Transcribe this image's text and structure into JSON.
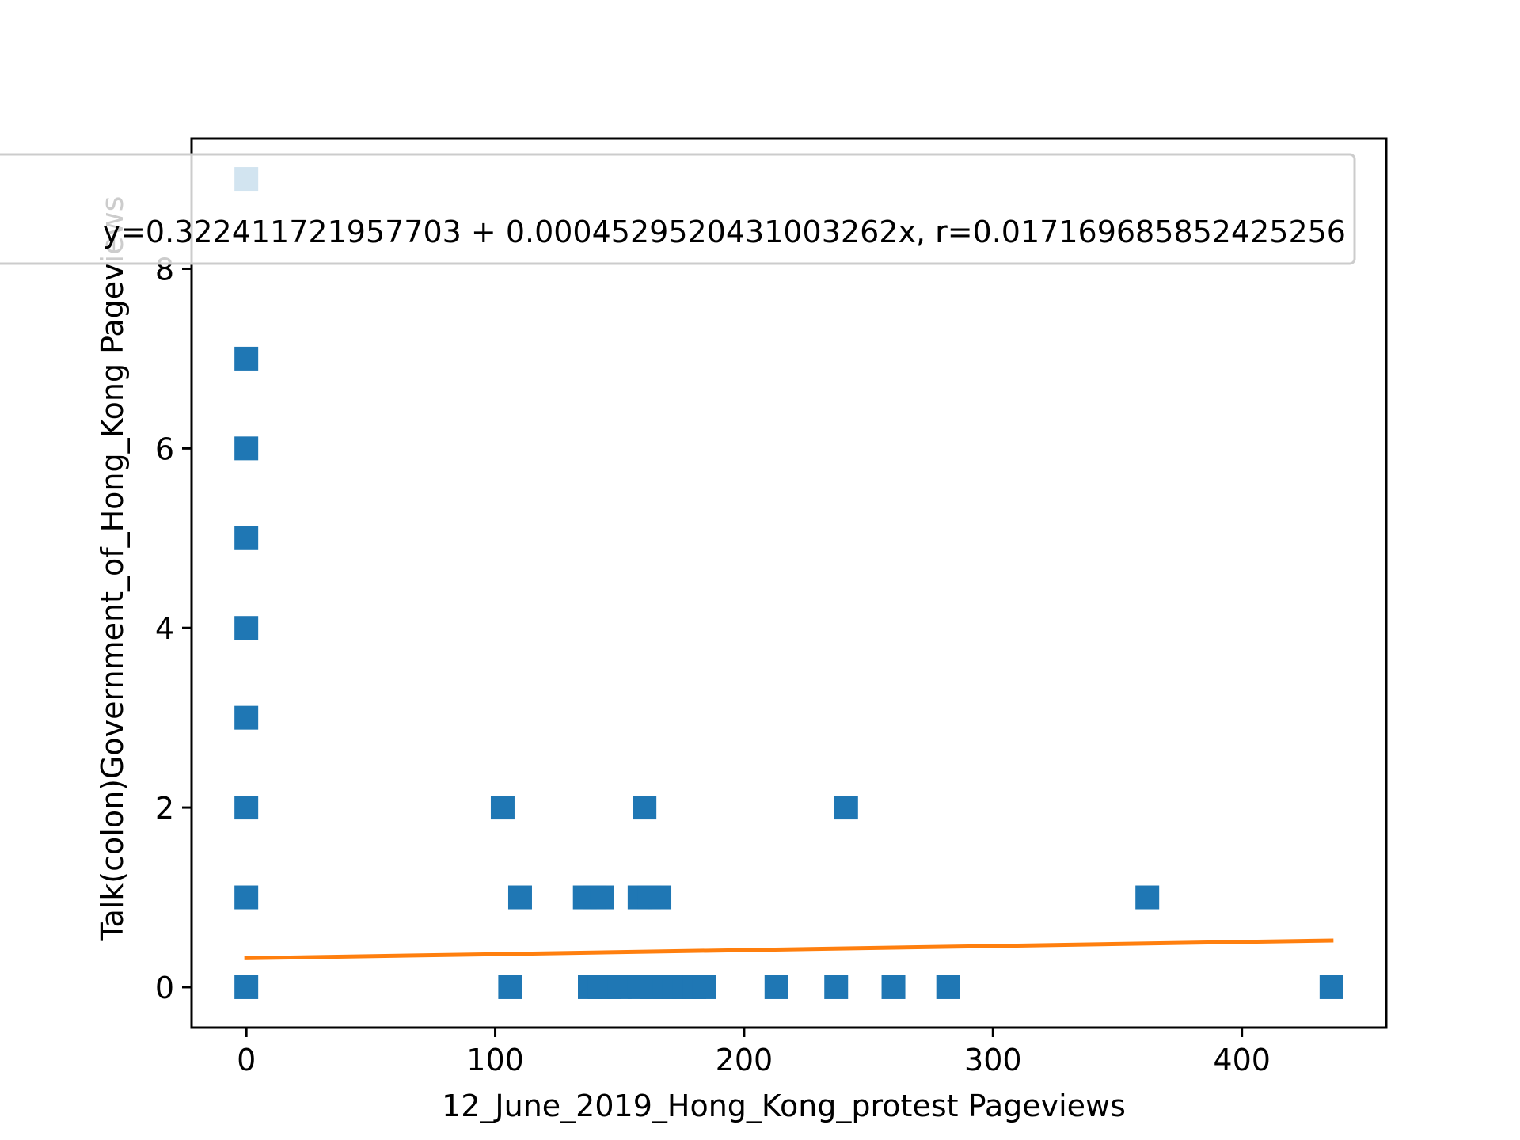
{
  "chart_data": {
    "type": "scatter",
    "title": "",
    "xlabel": "12_June_2019_Hong_Kong_protest Pageviews",
    "ylabel": "Talk(colon)Government_of_Hong_Kong Pageviews",
    "xlim": [
      -22,
      458
    ],
    "ylim": [
      -0.45,
      9.45
    ],
    "xticks": [
      0,
      100,
      200,
      300,
      400
    ],
    "yticks": [
      0,
      2,
      4,
      6,
      8
    ],
    "grid": false,
    "legend": {
      "placement": "upper center",
      "text": "y=0.322411721957703 + 0.000452952043100326​2x, r=0.017169685852425256"
    },
    "series": [
      {
        "kind": "scatter",
        "marker": "square",
        "color": "#1f77b4",
        "points": [
          [
            0,
            9
          ],
          [
            0,
            7
          ],
          [
            0,
            6
          ],
          [
            0,
            5
          ],
          [
            0,
            4
          ],
          [
            0,
            3
          ],
          [
            0,
            2
          ],
          [
            0,
            1
          ],
          [
            0,
            0
          ],
          [
            103,
            2
          ],
          [
            106,
            0
          ],
          [
            110,
            1
          ],
          [
            136,
            1
          ],
          [
            140,
            1
          ],
          [
            143,
            1
          ],
          [
            138,
            0
          ],
          [
            142,
            0
          ],
          [
            146,
            0
          ],
          [
            150,
            0
          ],
          [
            158,
            1
          ],
          [
            162,
            1
          ],
          [
            166,
            1
          ],
          [
            160,
            2
          ],
          [
            158,
            0
          ],
          [
            163,
            0
          ],
          [
            168,
            0
          ],
          [
            172,
            0
          ],
          [
            176,
            0
          ],
          [
            180,
            0
          ],
          [
            184,
            0
          ],
          [
            213,
            0
          ],
          [
            237,
            0
          ],
          [
            241,
            2
          ],
          [
            260,
            0
          ],
          [
            282,
            0
          ],
          [
            362,
            1
          ],
          [
            436,
            0
          ]
        ]
      },
      {
        "kind": "line",
        "color": "#ff7f0e",
        "intercept": 0.322411721957703,
        "slope": 0.0004529520431003262,
        "x_range": [
          0,
          436
        ]
      }
    ]
  }
}
